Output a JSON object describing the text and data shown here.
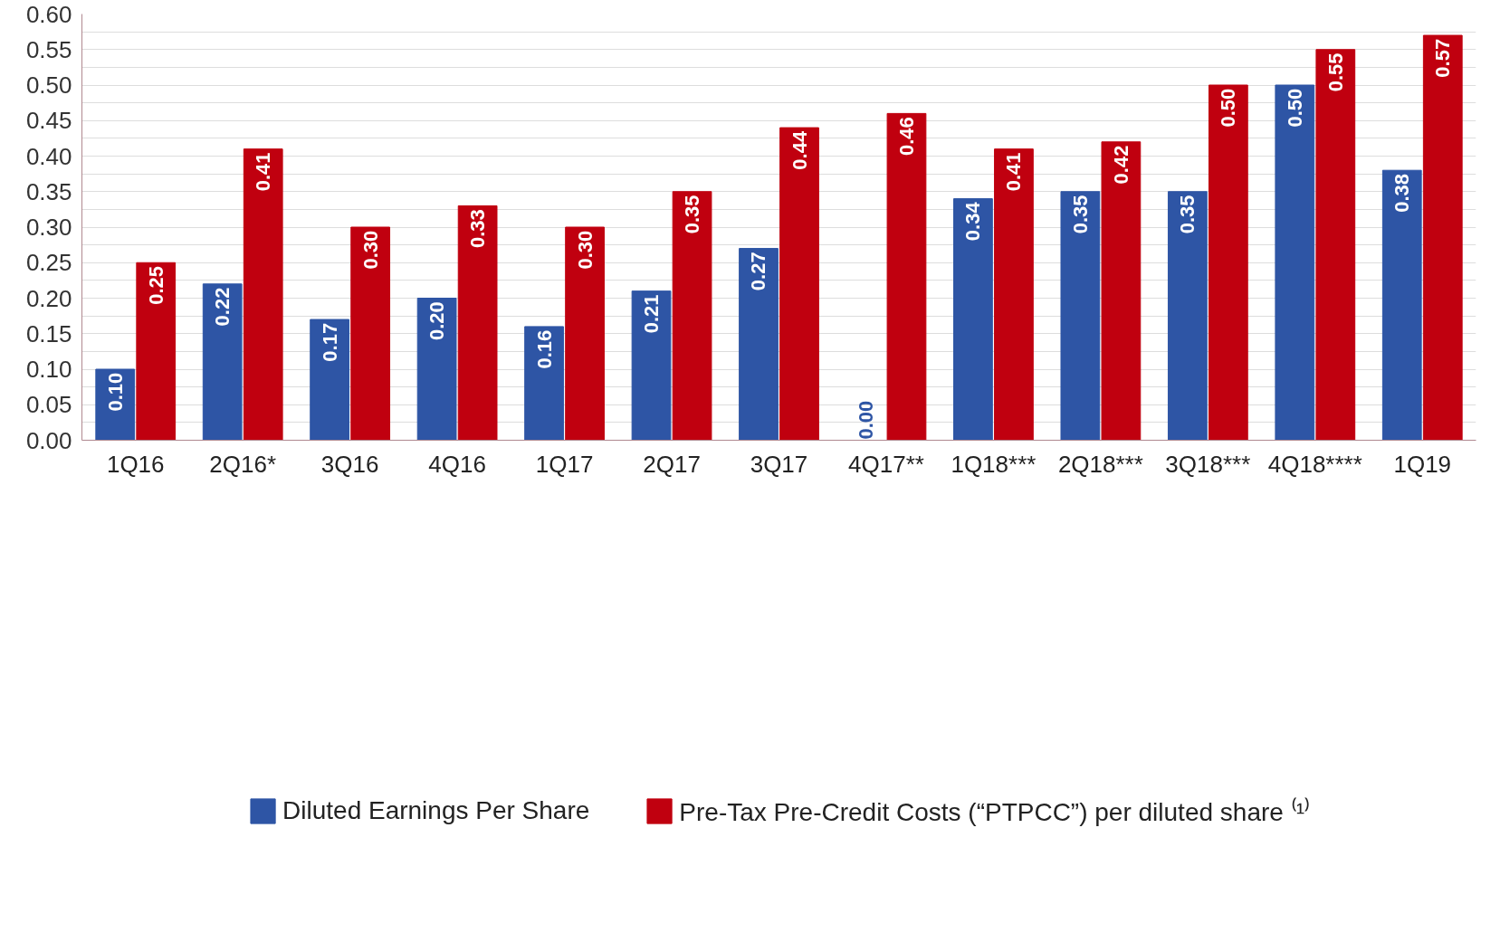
{
  "chart_data": {
    "type": "bar",
    "categories": [
      "1Q16",
      "2Q16*",
      "3Q16",
      "4Q16",
      "1Q17",
      "2Q17",
      "3Q17",
      "4Q17**",
      "1Q18***",
      "2Q18***",
      "3Q18***",
      "4Q18****",
      "1Q19"
    ],
    "series": [
      {
        "name": "Diluted Earnings Per Share",
        "color": "#2e55a5",
        "values": [
          0.1,
          0.22,
          0.17,
          0.2,
          0.16,
          0.21,
          0.27,
          0.0,
          0.34,
          0.35,
          0.35,
          0.5,
          0.38
        ],
        "value_labels": [
          "0.10",
          "0.22",
          "0.17",
          "0.20",
          "0.16",
          "0.21",
          "0.27",
          "0.00",
          "0.34",
          "0.35",
          "0.35",
          "0.50",
          "0.38"
        ]
      },
      {
        "name": "Pre-Tax Pre-Credit Costs (“PTPCC”) per diluted share ⁽¹⁾",
        "color": "#c0000f",
        "values": [
          0.25,
          0.41,
          0.3,
          0.33,
          0.3,
          0.35,
          0.44,
          0.46,
          0.41,
          0.42,
          0.5,
          0.55,
          0.57
        ],
        "value_labels": [
          "0.25",
          "0.41",
          "0.30",
          "0.33",
          "0.30",
          "0.35",
          "0.44",
          "0.46",
          "0.41",
          "0.42",
          "0.50",
          "0.55",
          "0.57"
        ]
      }
    ],
    "ylim": [
      0,
      0.6
    ],
    "yticks": [
      {
        "value": 0,
        "label": "0.00"
      },
      {
        "value": 0.025,
        "label": null
      },
      {
        "value": 0.05,
        "label": "0.05"
      },
      {
        "value": 0.075,
        "label": null
      },
      {
        "value": 0.1,
        "label": "0.10"
      },
      {
        "value": 0.125,
        "label": null
      },
      {
        "value": 0.15,
        "label": "0.15"
      },
      {
        "value": 0.175,
        "label": null
      },
      {
        "value": 0.2,
        "label": "0.20"
      },
      {
        "value": 0.225,
        "label": null
      },
      {
        "value": 0.25,
        "label": "0.25"
      },
      {
        "value": 0.275,
        "label": null
      },
      {
        "value": 0.3,
        "label": "0.30"
      },
      {
        "value": 0.325,
        "label": null
      },
      {
        "value": 0.35,
        "label": "0.35"
      },
      {
        "value": 0.375,
        "label": null
      },
      {
        "value": 0.4,
        "label": "0.40"
      },
      {
        "value": 0.425,
        "label": null
      },
      {
        "value": 0.45,
        "label": "0.45"
      },
      {
        "value": 0.475,
        "label": null
      },
      {
        "value": 0.5,
        "label": "0.50"
      },
      {
        "value": 0.525,
        "label": null
      },
      {
        "value": 0.55,
        "label": "0.55"
      },
      {
        "value": 0.575,
        "label": null
      },
      {
        "value": 0.6,
        "label": "0.60"
      }
    ],
    "grid": "y",
    "legend": "bottom"
  }
}
